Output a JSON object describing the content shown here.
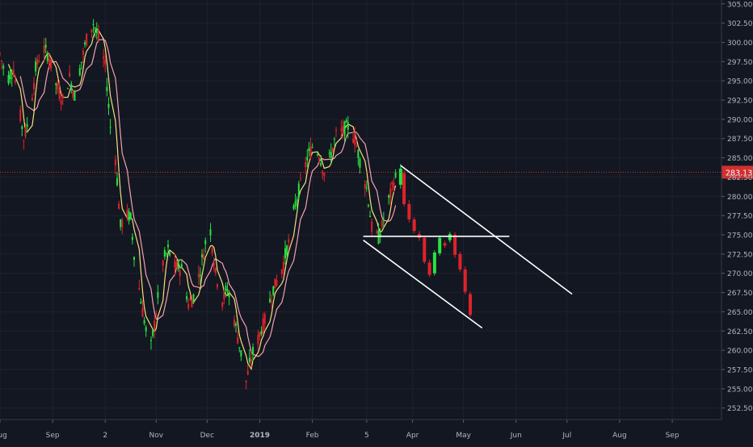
{
  "chart_data": {
    "type": "candlestick",
    "title": "",
    "xlabel": "",
    "ylabel": "",
    "ylim": [
      251,
      305.5
    ],
    "xlim": [
      "2018-08-01",
      "2019-09-30"
    ],
    "grid": true,
    "background": "#131722",
    "x_ticks": [
      {
        "label": "Aug",
        "date": "2018-08-01"
      },
      {
        "label": "Sep",
        "date": "2018-09-01"
      },
      {
        "label": "2",
        "date": "2018-10-02"
      },
      {
        "label": "Nov",
        "date": "2018-11-01"
      },
      {
        "label": "Dec",
        "date": "2018-12-01"
      },
      {
        "label": "2019",
        "date": "2019-01-01"
      },
      {
        "label": "Feb",
        "date": "2019-02-01"
      },
      {
        "label": "5",
        "date": "2019-03-05"
      },
      {
        "label": "Apr",
        "date": "2019-04-01"
      },
      {
        "label": "May",
        "date": "2019-05-01"
      },
      {
        "label": "Jun",
        "date": "2019-06-01"
      },
      {
        "label": "Jul",
        "date": "2019-07-01"
      },
      {
        "label": "Aug",
        "date": "2019-08-01"
      },
      {
        "label": "Sep",
        "date": "2019-09-01"
      }
    ],
    "y_ticks": [
      "252.50",
      "255.00",
      "257.50",
      "260.00",
      "262.50",
      "265.00",
      "267.50",
      "270.00",
      "272.50",
      "275.00",
      "277.50",
      "280.00",
      "282.50",
      "285.00",
      "287.50",
      "290.00",
      "292.50",
      "295.00",
      "297.50",
      "300.00",
      "302.50",
      "305.00"
    ],
    "last_price": {
      "value": 283.13,
      "label": "283.13",
      "color": "#d32f2f"
    },
    "colors": {
      "up": "#26e33f",
      "down": "#e0222b",
      "ma_fast": "#f4e07a",
      "ma_slow": "#f4a0b0",
      "trendline": "#ffffff",
      "grid": "#1e222d"
    },
    "price_path": [
      [
        "2018-08-01",
        298.5
      ],
      [
        "2018-08-05",
        295.0
      ],
      [
        "2018-08-09",
        296.5
      ],
      [
        "2018-08-12",
        292.0
      ],
      [
        "2018-08-15",
        287.5
      ],
      [
        "2018-08-18",
        290.0
      ],
      [
        "2018-08-22",
        296.5
      ],
      [
        "2018-08-26",
        299.5
      ],
      [
        "2018-08-30",
        298.0
      ],
      [
        "2018-09-03",
        294.5
      ],
      [
        "2018-09-07",
        292.5
      ],
      [
        "2018-09-11",
        295.5
      ],
      [
        "2018-09-14",
        293.0
      ],
      [
        "2018-09-18",
        297.5
      ],
      [
        "2018-09-21",
        300.5
      ],
      [
        "2018-09-25",
        302.5
      ],
      [
        "2018-09-28",
        300.5
      ],
      [
        "2018-10-02",
        297.0
      ],
      [
        "2018-10-05",
        289.0
      ],
      [
        "2018-10-08",
        285.0
      ],
      [
        "2018-10-11",
        276.0
      ],
      [
        "2018-10-14",
        278.0
      ],
      [
        "2018-10-17",
        277.0
      ],
      [
        "2018-10-19",
        272.5
      ],
      [
        "2018-10-23",
        266.5
      ],
      [
        "2018-10-26",
        262.5
      ],
      [
        "2018-10-29",
        260.5
      ],
      [
        "2018-11-01",
        265.0
      ],
      [
        "2018-11-05",
        271.5
      ],
      [
        "2018-11-08",
        273.0
      ],
      [
        "2018-11-12",
        271.0
      ],
      [
        "2018-11-16",
        270.5
      ],
      [
        "2018-11-20",
        266.0
      ],
      [
        "2018-11-23",
        267.0
      ],
      [
        "2018-11-27",
        270.5
      ],
      [
        "2018-11-30",
        274.0
      ],
      [
        "2018-12-03",
        275.5
      ],
      [
        "2018-12-06",
        270.0
      ],
      [
        "2018-12-10",
        266.5
      ],
      [
        "2018-12-13",
        268.0
      ],
      [
        "2018-12-17",
        264.0
      ],
      [
        "2018-12-21",
        259.5
      ],
      [
        "2018-12-24",
        256.0
      ],
      [
        "2018-12-27",
        259.0
      ],
      [
        "2018-12-31",
        261.5
      ],
      [
        "2019-01-04",
        264.0
      ],
      [
        "2019-01-09",
        268.0
      ],
      [
        "2019-01-14",
        270.5
      ],
      [
        "2019-01-18",
        274.0
      ],
      [
        "2019-01-22",
        279.0
      ],
      [
        "2019-01-25",
        281.5
      ],
      [
        "2019-01-29",
        285.0
      ],
      [
        "2019-02-01",
        286.5
      ],
      [
        "2019-02-05",
        285.5
      ],
      [
        "2019-02-08",
        283.0
      ],
      [
        "2019-02-12",
        285.5
      ],
      [
        "2019-02-15",
        288.0
      ],
      [
        "2019-02-19",
        288.5
      ],
      [
        "2019-02-22",
        289.0
      ],
      [
        "2019-02-26",
        287.5
      ],
      [
        "2019-03-01",
        284.5
      ],
      [
        "2019-03-05",
        281.0
      ],
      [
        "2019-03-08",
        276.0
      ],
      [
        "2019-03-12",
        274.5
      ],
      [
        "2019-03-15",
        277.0
      ],
      [
        "2019-03-18",
        279.5
      ],
      [
        "2019-03-21",
        282.0
      ],
      [
        "2019-03-25",
        283.5
      ],
      [
        "2019-03-28",
        279.0
      ],
      [
        "2019-04-01",
        277.0
      ],
      [
        "2019-04-05",
        275.0
      ],
      [
        "2019-04-10",
        271.5
      ],
      [
        "2019-04-15",
        270.0
      ],
      [
        "2019-04-19",
        272.5
      ],
      [
        "2019-04-23",
        274.5
      ],
      [
        "2019-04-26",
        275.0
      ],
      [
        "2019-04-29",
        273.0
      ],
      [
        "2019-05-02",
        270.0
      ],
      [
        "2019-05-06",
        267.0
      ],
      [
        "2019-05-08",
        265.0
      ]
    ],
    "recent_candles": [
      {
        "date": "2019-03-25",
        "open": 281.5,
        "close": 283.6,
        "high": 284.2,
        "low": 281.0
      },
      {
        "date": "2019-03-27",
        "open": 283.0,
        "close": 279.0,
        "high": 283.4,
        "low": 278.7
      },
      {
        "date": "2019-03-30",
        "open": 279.0,
        "close": 277.0,
        "high": 279.5,
        "low": 276.6
      },
      {
        "date": "2019-04-02",
        "open": 277.0,
        "close": 275.5,
        "high": 277.3,
        "low": 275.2
      },
      {
        "date": "2019-04-05",
        "open": 275.1,
        "close": 274.6,
        "high": 275.5,
        "low": 274.2
      },
      {
        "date": "2019-04-08",
        "open": 274.6,
        "close": 271.5,
        "high": 274.9,
        "low": 271.2
      },
      {
        "date": "2019-04-11",
        "open": 271.4,
        "close": 269.8,
        "high": 271.8,
        "low": 269.5
      },
      {
        "date": "2019-04-14",
        "open": 270.0,
        "close": 272.7,
        "high": 273.0,
        "low": 269.7
      },
      {
        "date": "2019-04-17",
        "open": 272.6,
        "close": 274.6,
        "high": 274.9,
        "low": 272.3
      },
      {
        "date": "2019-04-20",
        "open": 273.9,
        "close": 273.6,
        "high": 274.2,
        "low": 273.3
      },
      {
        "date": "2019-04-23",
        "open": 274.3,
        "close": 275.1,
        "high": 275.4,
        "low": 274.0
      },
      {
        "date": "2019-04-26",
        "open": 275.0,
        "close": 272.4,
        "high": 275.3,
        "low": 272.0
      },
      {
        "date": "2019-04-29",
        "open": 272.5,
        "close": 270.5,
        "high": 272.8,
        "low": 270.2
      },
      {
        "date": "2019-05-02",
        "open": 270.5,
        "close": 267.6,
        "high": 270.9,
        "low": 267.3
      },
      {
        "date": "2019-05-05",
        "open": 267.3,
        "close": 264.6,
        "high": 267.6,
        "low": 264.3
      }
    ],
    "trendlines": [
      {
        "from": [
          "2019-03-25",
          284.0
        ],
        "to": [
          "2019-07-04",
          267.3
        ]
      },
      {
        "from": [
          "2019-03-03",
          274.3
        ],
        "to": [
          "2019-05-12",
          262.9
        ]
      },
      {
        "from": [
          "2019-03-03",
          274.8
        ],
        "to": [
          "2019-05-28",
          274.8
        ]
      }
    ]
  }
}
